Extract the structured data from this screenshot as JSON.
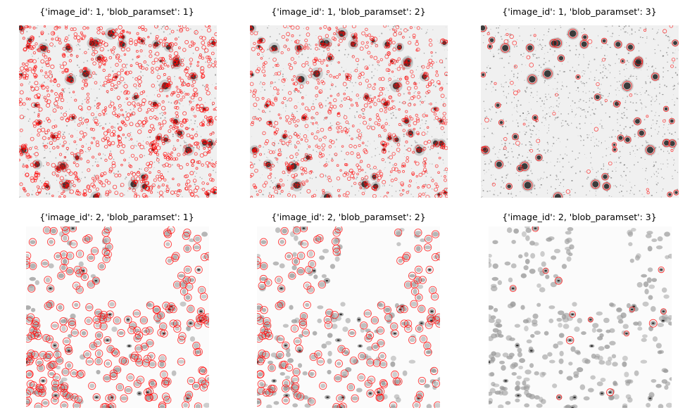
{
  "figure": {
    "panels": [
      {
        "title": "{'image_id': 1, 'blob_paramset': 1}",
        "image_id": 1,
        "blob_paramset": 1
      },
      {
        "title": "{'image_id': 1, 'blob_paramset': 2}",
        "image_id": 1,
        "blob_paramset": 2
      },
      {
        "title": "{'image_id': 1, 'blob_paramset': 3}",
        "image_id": 1,
        "blob_paramset": 3
      },
      {
        "title": "{'image_id': 2, 'blob_paramset': 1}",
        "image_id": 2,
        "blob_paramset": 1
      },
      {
        "title": "{'image_id': 2, 'blob_paramset': 2}",
        "image_id": 2,
        "blob_paramset": 2
      },
      {
        "title": "{'image_id': 2, 'blob_paramset': 3}",
        "image_id": 2,
        "blob_paramset": 3
      }
    ],
    "colors": {
      "blob_circle": "#ff0000",
      "image1_background": "#f0f0f0",
      "image2_background": "#fbfbfb"
    }
  }
}
